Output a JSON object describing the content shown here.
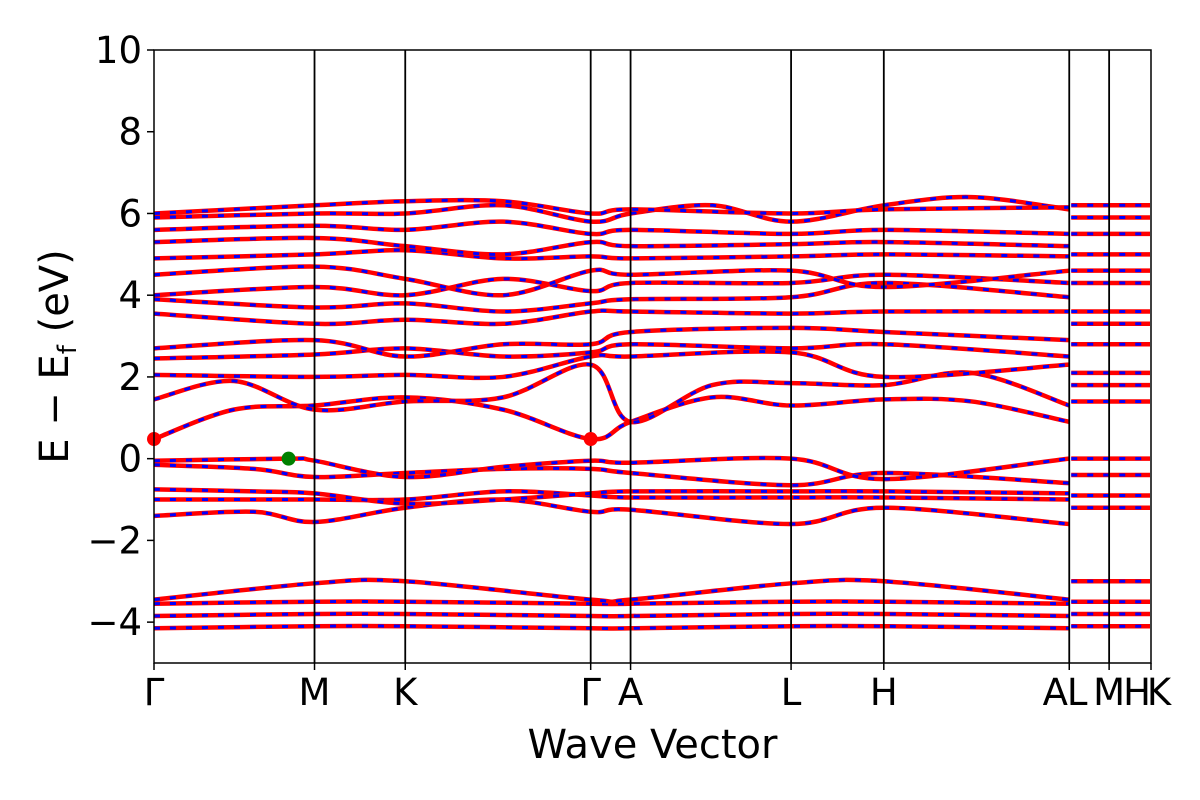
{
  "chart_data": {
    "type": "line",
    "title": "",
    "xlabel": "Wave Vector",
    "ylabel": "E − E",
    "ylabel_sub": "f",
    "ylabel_unit": " (eV)",
    "ylim": [
      -5,
      10
    ],
    "yticks": [
      -4,
      -2,
      0,
      2,
      4,
      6,
      8,
      10
    ],
    "ytick_labels": [
      "−4",
      "−2",
      "0",
      "2",
      "4",
      "6",
      "8",
      "10"
    ],
    "xlim": [
      0,
      1
    ],
    "kpoints": [
      {
        "label": "Γ",
        "x": 0.0
      },
      {
        "label": "M",
        "x": 0.161
      },
      {
        "label": "K",
        "x": 0.252
      },
      {
        "label": "Γ",
        "x": 0.438
      },
      {
        "label": "A",
        "x": 0.478
      },
      {
        "label": "L",
        "x": 0.639
      },
      {
        "label": "H",
        "x": 0.732
      },
      {
        "label": "A",
        "x": 0.918
      },
      {
        "label": "L",
        "x": 0.918
      },
      {
        "label": "M",
        "x": 0.958
      },
      {
        "label": "H",
        "x": 1.0
      },
      {
        "label": "K",
        "x": 1.0
      }
    ],
    "colors": {
      "spin_up": "#0000ff",
      "spin_down": "#ff0000",
      "vbm": "#008000",
      "cbm": "#ff0000"
    },
    "band_extrema": {
      "vbm": {
        "x": 0.135,
        "y": 0.0
      },
      "cbm": [
        {
          "x": 0.0,
          "y": 0.48
        },
        {
          "x": 0.438,
          "y": 0.48
        }
      ]
    },
    "series": [
      {
        "values": [
          [
            0,
            -4.15
          ],
          [
            0.161,
            -4.1
          ],
          [
            0.252,
            -4.1
          ],
          [
            0.438,
            -4.15
          ],
          [
            0.478,
            -4.15
          ],
          [
            0.639,
            -4.1
          ],
          [
            0.732,
            -4.1
          ],
          [
            0.918,
            -4.15
          ]
        ]
      },
      {
        "values": [
          [
            0,
            -3.85
          ],
          [
            0.161,
            -3.8
          ],
          [
            0.252,
            -3.8
          ],
          [
            0.438,
            -3.85
          ],
          [
            0.478,
            -3.85
          ],
          [
            0.639,
            -3.8
          ],
          [
            0.732,
            -3.8
          ],
          [
            0.918,
            -3.85
          ]
        ]
      },
      {
        "values": [
          [
            0,
            -3.55
          ],
          [
            0.161,
            -3.5
          ],
          [
            0.252,
            -3.5
          ],
          [
            0.438,
            -3.55
          ],
          [
            0.478,
            -3.55
          ],
          [
            0.639,
            -3.5
          ],
          [
            0.732,
            -3.5
          ],
          [
            0.918,
            -3.55
          ]
        ]
      },
      {
        "values": [
          [
            0,
            -3.45
          ],
          [
            0.161,
            -3.05
          ],
          [
            0.252,
            -3.0
          ],
          [
            0.438,
            -3.45
          ],
          [
            0.478,
            -3.45
          ],
          [
            0.639,
            -3.05
          ],
          [
            0.732,
            -3.0
          ],
          [
            0.918,
            -3.45
          ]
        ]
      },
      {
        "values": [
          [
            0,
            -1.4
          ],
          [
            0.1,
            -1.3
          ],
          [
            0.161,
            -1.55
          ],
          [
            0.252,
            -1.2
          ],
          [
            0.35,
            -1.0
          ],
          [
            0.438,
            -1.3
          ],
          [
            0.478,
            -1.25
          ],
          [
            0.639,
            -1.6
          ],
          [
            0.732,
            -1.2
          ],
          [
            0.918,
            -1.6
          ]
        ]
      },
      {
        "values": [
          [
            0,
            -1.0
          ],
          [
            0.1,
            -1.0
          ],
          [
            0.161,
            -1.0
          ],
          [
            0.252,
            -1.0
          ],
          [
            0.35,
            -0.8
          ],
          [
            0.438,
            -0.9
          ],
          [
            0.478,
            -0.95
          ],
          [
            0.639,
            -0.95
          ],
          [
            0.732,
            -0.95
          ],
          [
            0.918,
            -1.0
          ]
        ]
      },
      {
        "values": [
          [
            0,
            -0.75
          ],
          [
            0.1,
            -0.8
          ],
          [
            0.161,
            -0.85
          ],
          [
            0.252,
            -1.1
          ],
          [
            0.35,
            -1.0
          ],
          [
            0.438,
            -0.85
          ],
          [
            0.478,
            -0.8
          ],
          [
            0.639,
            -0.8
          ],
          [
            0.732,
            -0.8
          ],
          [
            0.918,
            -0.85
          ]
        ]
      },
      {
        "values": [
          [
            0,
            -0.15
          ],
          [
            0.1,
            -0.25
          ],
          [
            0.161,
            -0.45
          ],
          [
            0.252,
            -0.35
          ],
          [
            0.35,
            -0.25
          ],
          [
            0.438,
            -0.25
          ],
          [
            0.478,
            -0.35
          ],
          [
            0.639,
            -0.65
          ],
          [
            0.732,
            -0.35
          ],
          [
            0.918,
            -0.6
          ]
        ]
      },
      {
        "values": [
          [
            0,
            -0.05
          ],
          [
            0.135,
            0.0
          ],
          [
            0.161,
            -0.05
          ],
          [
            0.252,
            -0.45
          ],
          [
            0.35,
            -0.2
          ],
          [
            0.438,
            -0.05
          ],
          [
            0.478,
            -0.1
          ],
          [
            0.639,
            0.0
          ],
          [
            0.732,
            -0.5
          ],
          [
            0.918,
            0.0
          ]
        ]
      },
      {
        "values": [
          [
            0,
            0.48
          ],
          [
            0.08,
            1.2
          ],
          [
            0.161,
            1.3
          ],
          [
            0.252,
            1.5
          ],
          [
            0.35,
            1.2
          ],
          [
            0.438,
            0.48
          ],
          [
            0.478,
            0.9
          ],
          [
            0.56,
            1.5
          ],
          [
            0.639,
            1.3
          ],
          [
            0.732,
            1.45
          ],
          [
            0.82,
            1.4
          ],
          [
            0.918,
            0.9
          ]
        ]
      },
      {
        "values": [
          [
            0,
            1.45
          ],
          [
            0.08,
            1.9
          ],
          [
            0.161,
            1.2
          ],
          [
            0.252,
            1.4
          ],
          [
            0.35,
            1.5
          ],
          [
            0.438,
            2.3
          ],
          [
            0.478,
            0.9
          ],
          [
            0.56,
            1.8
          ],
          [
            0.639,
            1.85
          ],
          [
            0.732,
            1.8
          ],
          [
            0.82,
            2.1
          ],
          [
            0.918,
            1.3
          ]
        ]
      },
      {
        "values": [
          [
            0,
            2.05
          ],
          [
            0.161,
            2.0
          ],
          [
            0.252,
            2.05
          ],
          [
            0.35,
            2.0
          ],
          [
            0.438,
            2.5
          ],
          [
            0.478,
            2.5
          ],
          [
            0.639,
            2.6
          ],
          [
            0.732,
            2.0
          ],
          [
            0.918,
            2.3
          ]
        ]
      },
      {
        "values": [
          [
            0,
            2.45
          ],
          [
            0.161,
            2.55
          ],
          [
            0.252,
            2.7
          ],
          [
            0.35,
            2.5
          ],
          [
            0.438,
            2.6
          ],
          [
            0.478,
            2.8
          ],
          [
            0.639,
            2.7
          ],
          [
            0.732,
            2.8
          ],
          [
            0.918,
            2.5
          ]
        ]
      },
      {
        "values": [
          [
            0,
            2.7
          ],
          [
            0.161,
            2.9
          ],
          [
            0.252,
            2.5
          ],
          [
            0.35,
            2.8
          ],
          [
            0.438,
            2.8
          ],
          [
            0.478,
            3.1
          ],
          [
            0.639,
            3.2
          ],
          [
            0.732,
            3.1
          ],
          [
            0.918,
            2.9
          ]
        ]
      },
      {
        "values": [
          [
            0,
            3.55
          ],
          [
            0.161,
            3.3
          ],
          [
            0.252,
            3.4
          ],
          [
            0.35,
            3.3
          ],
          [
            0.438,
            3.6
          ],
          [
            0.478,
            3.6
          ],
          [
            0.639,
            3.55
          ],
          [
            0.732,
            3.6
          ],
          [
            0.918,
            3.6
          ]
        ]
      },
      {
        "values": [
          [
            0,
            3.9
          ],
          [
            0.161,
            3.7
          ],
          [
            0.252,
            3.8
          ],
          [
            0.35,
            3.6
          ],
          [
            0.438,
            3.8
          ],
          [
            0.478,
            3.9
          ],
          [
            0.639,
            3.95
          ],
          [
            0.732,
            4.3
          ],
          [
            0.918,
            3.95
          ]
        ]
      },
      {
        "values": [
          [
            0,
            4.0
          ],
          [
            0.161,
            4.2
          ],
          [
            0.252,
            4.0
          ],
          [
            0.35,
            4.4
          ],
          [
            0.438,
            4.1
          ],
          [
            0.478,
            4.3
          ],
          [
            0.639,
            4.3
          ],
          [
            0.732,
            4.5
          ],
          [
            0.918,
            4.3
          ]
        ]
      },
      {
        "values": [
          [
            0,
            4.5
          ],
          [
            0.161,
            4.7
          ],
          [
            0.252,
            4.4
          ],
          [
            0.35,
            4.0
          ],
          [
            0.438,
            4.6
          ],
          [
            0.478,
            4.5
          ],
          [
            0.639,
            4.6
          ],
          [
            0.732,
            4.2
          ],
          [
            0.918,
            4.6
          ]
        ]
      },
      {
        "values": [
          [
            0,
            4.9
          ],
          [
            0.161,
            5.0
          ],
          [
            0.252,
            5.1
          ],
          [
            0.35,
            4.9
          ],
          [
            0.438,
            4.95
          ],
          [
            0.478,
            4.9
          ],
          [
            0.639,
            4.95
          ],
          [
            0.732,
            5.0
          ],
          [
            0.918,
            4.95
          ]
        ]
      },
      {
        "values": [
          [
            0,
            5.3
          ],
          [
            0.161,
            5.4
          ],
          [
            0.252,
            5.2
          ],
          [
            0.35,
            5.0
          ],
          [
            0.438,
            5.3
          ],
          [
            0.478,
            5.2
          ],
          [
            0.639,
            5.25
          ],
          [
            0.732,
            5.3
          ],
          [
            0.918,
            5.2
          ]
        ]
      },
      {
        "values": [
          [
            0,
            5.6
          ],
          [
            0.161,
            5.7
          ],
          [
            0.252,
            5.6
          ],
          [
            0.35,
            5.8
          ],
          [
            0.438,
            5.5
          ],
          [
            0.478,
            5.6
          ],
          [
            0.639,
            5.5
          ],
          [
            0.732,
            5.6
          ],
          [
            0.918,
            5.5
          ]
        ]
      },
      {
        "values": [
          [
            0,
            5.9
          ],
          [
            0.161,
            6.0
          ],
          [
            0.252,
            6.0
          ],
          [
            0.35,
            6.2
          ],
          [
            0.438,
            5.8
          ],
          [
            0.478,
            6.0
          ],
          [
            0.56,
            6.2
          ],
          [
            0.639,
            5.8
          ],
          [
            0.732,
            6.2
          ],
          [
            0.82,
            6.4
          ],
          [
            0.918,
            6.1
          ]
        ]
      },
      {
        "values": [
          [
            0,
            6.0
          ],
          [
            0.161,
            6.2
          ],
          [
            0.252,
            6.3
          ],
          [
            0.35,
            6.3
          ],
          [
            0.438,
            6.0
          ],
          [
            0.478,
            6.1
          ],
          [
            0.639,
            6.0
          ],
          [
            0.732,
            6.1
          ],
          [
            0.918,
            6.15
          ]
        ]
      }
    ],
    "tail_levels": [
      -4.1,
      -3.8,
      -3.5,
      -3.0,
      -1.2,
      -0.9,
      -0.4,
      0.0,
      1.4,
      1.8,
      2.1,
      2.8,
      3.3,
      3.6,
      4.3,
      4.6,
      5.0,
      5.5,
      5.9,
      6.2
    ],
    "grid": false,
    "legend": "none"
  }
}
